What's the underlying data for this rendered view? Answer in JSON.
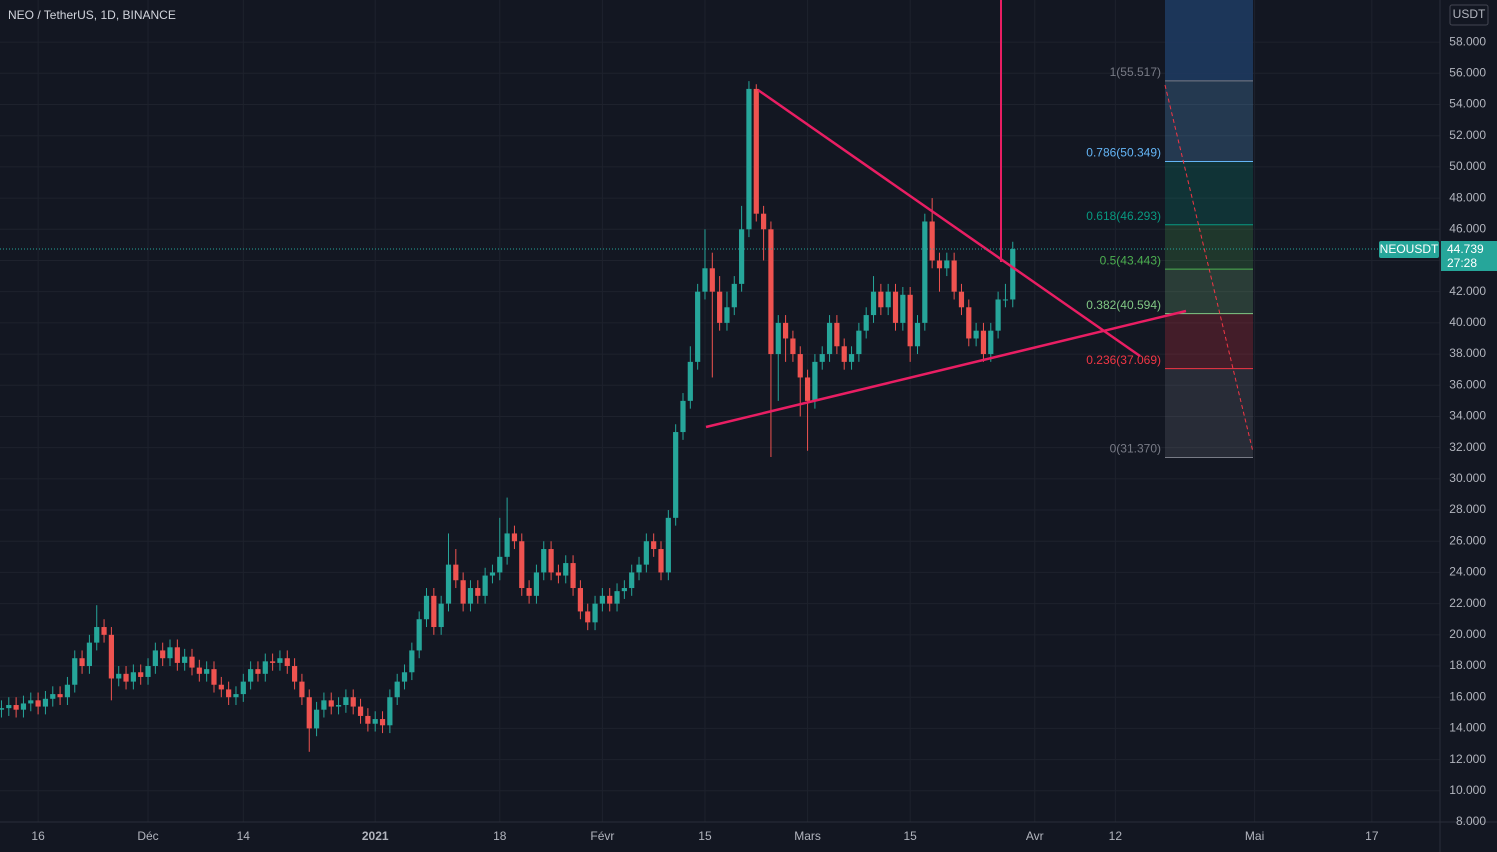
{
  "chart_data": {
    "type": "candlestick",
    "title": "NEO / TetherUS, 1D, BINANCE",
    "currency": "USDT",
    "symbol": "NEOUSDT",
    "last_price": 44.739,
    "countdown": "27:28",
    "up_color": "#26a69a",
    "down_color": "#ef5350",
    "xlim": [
      -0.2,
      196.3
    ],
    "ylim": [
      8,
      60.7
    ],
    "xticks": [
      {
        "value": 5,
        "label": "16"
      },
      {
        "value": 20,
        "label": "Déc"
      },
      {
        "value": 33,
        "label": "14"
      },
      {
        "value": 51,
        "label": "2021"
      },
      {
        "value": 68,
        "label": "18"
      },
      {
        "value": 82,
        "label": "Févr"
      },
      {
        "value": 96,
        "label": "15"
      },
      {
        "value": 110,
        "label": "Mars"
      },
      {
        "value": 124,
        "label": "15"
      },
      {
        "value": 141,
        "label": "Avr"
      },
      {
        "value": 152,
        "label": "12"
      },
      {
        "value": 171,
        "label": "Mai"
      },
      {
        "value": 187,
        "label": "17"
      }
    ],
    "yticks": [
      {
        "value": 58,
        "label": "58.000"
      },
      {
        "value": 56,
        "label": "56.000"
      },
      {
        "value": 54,
        "label": "54.000"
      },
      {
        "value": 52,
        "label": "52.000"
      },
      {
        "value": 50,
        "label": "50.000"
      },
      {
        "value": 48,
        "label": "48.000"
      },
      {
        "value": 46,
        "label": "46.000"
      },
      {
        "value": 44,
        "label": "44.000"
      },
      {
        "value": 42,
        "label": "42.000"
      },
      {
        "value": 40,
        "label": "40.000"
      },
      {
        "value": 38,
        "label": "38.000"
      },
      {
        "value": 36,
        "label": "36.000"
      },
      {
        "value": 34,
        "label": "34.000"
      },
      {
        "value": 32,
        "label": "32.000"
      },
      {
        "value": 30,
        "label": "30.000"
      },
      {
        "value": 28,
        "label": "28.000"
      },
      {
        "value": 26,
        "label": "26.000"
      },
      {
        "value": 24,
        "label": "24.000"
      },
      {
        "value": 22,
        "label": "22.000"
      },
      {
        "value": 20,
        "label": "20.000"
      },
      {
        "value": 18,
        "label": "18.000"
      },
      {
        "value": 16,
        "label": "16.000"
      },
      {
        "value": 14,
        "label": "14.000"
      },
      {
        "value": 12,
        "label": "12.000"
      },
      {
        "value": 10,
        "label": "10.000"
      },
      {
        "value": 8,
        "label": "8.000"
      }
    ],
    "open": [
      15.2,
      15.3,
      15.5,
      15.2,
      15.6,
      15.8,
      15.4,
      15.9,
      16.2,
      16.0,
      16.8,
      18.5,
      18.0,
      19.5,
      20.5,
      20.0,
      17.2,
      17.5,
      17.0,
      17.6,
      17.3,
      18.0,
      19.0,
      18.5,
      19.2,
      18.2,
      18.6,
      17.9,
      17.5,
      17.8,
      16.8,
      16.5,
      16.0,
      16.2,
      17.0,
      17.8,
      17.5,
      18.3,
      18.2,
      18.5,
      18.0,
      17.0,
      16.0,
      14.0,
      15.2,
      15.8,
      15.4,
      15.5,
      16.0,
      15.4,
      14.8,
      14.3,
      14.6,
      14.2,
      16.0,
      17.0,
      17.6,
      19.0,
      21.0,
      22.5,
      20.5,
      22.0,
      24.5,
      23.5,
      22.0,
      23.0,
      22.5,
      23.8,
      24.0,
      25.0,
      26.5,
      26.0,
      23.0,
      22.5,
      24.0,
      25.5,
      24.0,
      23.8,
      24.6,
      23.0,
      21.5,
      20.8,
      22.0,
      22.5,
      22.0,
      22.8,
      23.0,
      24.0,
      24.5,
      26.0,
      25.5,
      24.0,
      27.5,
      33.0,
      35.0,
      37.5,
      42.0,
      43.5,
      42.0,
      40.0,
      41.0,
      42.5,
      46.0,
      55.0,
      47.0,
      46.0,
      38.0,
      40.0,
      39.0,
      38.0,
      36.5,
      35.0,
      37.5,
      38.0,
      40.0,
      38.5,
      37.5,
      38.0,
      39.5,
      40.5,
      42.0,
      41.0,
      42.0,
      40.0,
      41.8,
      38.5,
      40.0,
      46.5,
      44.0,
      43.5,
      44.0,
      42.0,
      41.0,
      39.0,
      39.5,
      38.0,
      39.5,
      41.5,
      41.5
    ],
    "high": [
      15.8,
      16.0,
      16.0,
      16.1,
      16.3,
      16.3,
      16.4,
      16.7,
      16.7,
      17.3,
      19.0,
      19.0,
      20.0,
      21.9,
      21.0,
      20.5,
      18.0,
      18.0,
      18.1,
      18.1,
      18.5,
      19.5,
      19.5,
      19.7,
      19.7,
      19.1,
      19.1,
      18.4,
      18.3,
      18.3,
      17.3,
      17.0,
      16.7,
      17.5,
      18.3,
      18.3,
      18.8,
      18.8,
      19.0,
      19.0,
      18.5,
      17.5,
      16.5,
      15.7,
      16.3,
      16.3,
      16.0,
      16.5,
      16.5,
      15.9,
      15.3,
      15.1,
      15.1,
      16.5,
      17.5,
      18.1,
      19.5,
      21.5,
      23.0,
      23.0,
      22.5,
      26.5,
      25.5,
      24.0,
      23.5,
      23.5,
      24.3,
      24.5,
      27.5,
      28.8,
      27.0,
      26.5,
      23.5,
      24.5,
      26.0,
      26.0,
      24.5,
      25.1,
      25.1,
      23.5,
      22.0,
      22.5,
      23.0,
      23.0,
      23.3,
      23.5,
      24.5,
      25.0,
      26.5,
      26.5,
      26.0,
      28.0,
      33.5,
      35.5,
      38.5,
      42.5,
      46.0,
      44.5,
      43.0,
      42.0,
      43.0,
      47.5,
      55.5,
      55.3,
      47.5,
      46.5,
      40.5,
      40.5,
      39.5,
      38.5,
      37.0,
      38.0,
      38.5,
      40.5,
      40.5,
      39.0,
      38.5,
      40.0,
      41.0,
      43.0,
      42.5,
      42.5,
      42.5,
      42.3,
      42.3,
      40.5,
      47.0,
      48.0,
      44.5,
      44.5,
      44.5,
      42.5,
      41.5,
      40.0,
      40.0,
      40.0,
      42.0,
      42.5,
      45.2
    ],
    "low": [
      14.7,
      14.8,
      14.7,
      14.7,
      15.1,
      14.9,
      14.9,
      15.4,
      15.5,
      15.5,
      16.3,
      17.5,
      17.5,
      19.0,
      19.5,
      15.8,
      16.7,
      16.5,
      16.5,
      16.8,
      16.8,
      17.5,
      18.0,
      18.0,
      17.7,
      17.7,
      17.4,
      17.0,
      17.0,
      16.3,
      16.0,
      15.5,
      15.5,
      15.7,
      16.5,
      17.0,
      17.0,
      17.7,
      17.7,
      17.5,
      16.5,
      15.5,
      12.5,
      13.5,
      14.7,
      14.9,
      14.9,
      15.0,
      14.9,
      14.3,
      13.8,
      13.8,
      13.7,
      13.7,
      15.5,
      16.5,
      17.1,
      18.5,
      20.5,
      20.0,
      20.0,
      21.5,
      23.0,
      21.5,
      21.5,
      22.0,
      22.0,
      23.3,
      23.5,
      24.5,
      25.5,
      22.5,
      22.0,
      22.0,
      23.5,
      23.5,
      23.3,
      23.3,
      22.5,
      21.0,
      20.3,
      20.3,
      21.5,
      21.5,
      21.5,
      22.3,
      22.5,
      23.5,
      24.0,
      25.0,
      23.5,
      23.5,
      27.0,
      32.5,
      34.5,
      37.0,
      41.5,
      36.5,
      39.5,
      39.5,
      40.5,
      42.0,
      45.5,
      46.5,
      44.0,
      31.4,
      35.0,
      37.5,
      37.5,
      34.0,
      31.8,
      34.5,
      37.0,
      37.5,
      38.0,
      37.0,
      37.0,
      37.5,
      39.0,
      40.0,
      40.5,
      40.5,
      39.5,
      39.5,
      37.5,
      38.0,
      39.5,
      43.5,
      42.0,
      43.0,
      41.5,
      40.5,
      38.5,
      38.5,
      37.5,
      37.5,
      39.0,
      41.0,
      41.0
    ],
    "close": [
      15.3,
      15.5,
      15.2,
      15.6,
      15.8,
      15.4,
      15.9,
      16.2,
      16.0,
      16.8,
      18.5,
      18.0,
      19.5,
      20.5,
      20.0,
      17.2,
      17.5,
      17.0,
      17.6,
      17.3,
      18.0,
      19.0,
      18.5,
      19.2,
      18.2,
      18.6,
      17.9,
      17.5,
      17.8,
      16.8,
      16.5,
      16.0,
      16.2,
      17.0,
      17.8,
      17.5,
      18.3,
      18.2,
      18.5,
      18.0,
      17.0,
      16.0,
      14.0,
      15.2,
      15.8,
      15.4,
      15.5,
      16.0,
      15.4,
      14.8,
      14.3,
      14.6,
      14.2,
      16.0,
      17.0,
      17.6,
      19.0,
      21.0,
      22.5,
      20.5,
      22.0,
      24.5,
      23.5,
      22.0,
      23.0,
      22.5,
      23.8,
      24.0,
      25.0,
      26.5,
      26.0,
      23.0,
      22.5,
      24.0,
      25.5,
      24.0,
      23.8,
      24.6,
      23.0,
      21.5,
      20.8,
      22.0,
      22.5,
      22.0,
      22.8,
      23.0,
      24.0,
      24.5,
      26.0,
      25.5,
      24.0,
      27.5,
      33.0,
      35.0,
      37.5,
      42.0,
      43.5,
      42.0,
      40.0,
      41.0,
      42.5,
      46.0,
      55.0,
      47.0,
      46.0,
      38.0,
      40.0,
      39.0,
      38.0,
      36.5,
      35.0,
      37.5,
      38.0,
      40.0,
      38.5,
      37.5,
      38.0,
      39.5,
      40.5,
      42.0,
      41.0,
      42.0,
      40.0,
      41.8,
      38.5,
      40.0,
      46.5,
      44.0,
      43.5,
      44.0,
      42.0,
      41.0,
      39.0,
      39.5,
      38.0,
      39.5,
      41.5,
      41.5,
      44.739
    ],
    "fib": [
      {
        "value": 55.517,
        "label": "1(55.517)",
        "color": "#787b86"
      },
      {
        "value": 50.349,
        "label": "0.786(50.349)",
        "color": "#64b5f6"
      },
      {
        "value": 46.293,
        "label": "0.618(46.293)",
        "color": "#089981"
      },
      {
        "value": 43.443,
        "label": "0.5(43.443)",
        "color": "#4caf50"
      },
      {
        "value": 40.594,
        "label": "0.382(40.594)",
        "color": "#81c784"
      },
      {
        "value": 37.069,
        "label": "0.236(37.069)",
        "color": "#f23645"
      },
      {
        "value": 31.37,
        "label": "0(31.370)",
        "color": "#787b86"
      }
    ]
  }
}
